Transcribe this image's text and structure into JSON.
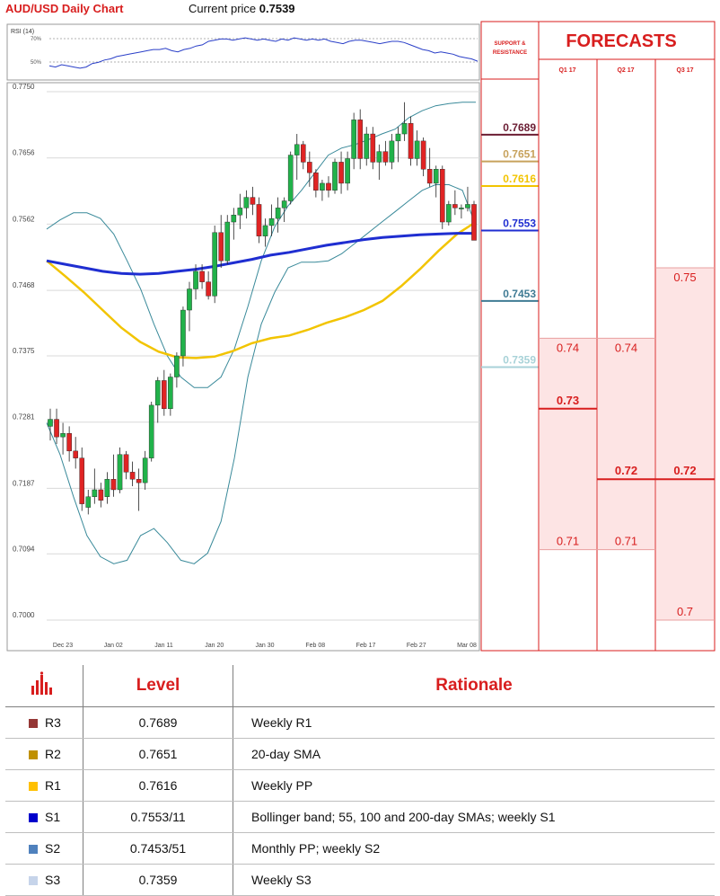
{
  "header": {
    "title": "AUD/USD Daily Chart",
    "price_label": "Current price",
    "price_value": "0.7539"
  },
  "chart_data": [
    {
      "type": "line",
      "title": "RSI (14)",
      "y_tick_labels": [
        "70%",
        "50%"
      ],
      "ylim": [
        40,
        80
      ],
      "rsi_values": [
        49,
        48,
        50,
        49,
        48,
        47,
        48,
        51,
        52,
        54,
        55,
        57,
        58,
        59,
        60,
        61,
        62,
        63,
        63,
        64,
        62,
        61,
        63,
        64,
        66,
        67,
        70,
        71,
        72,
        72,
        71,
        72,
        73,
        72,
        71,
        72,
        71,
        70,
        72,
        71,
        73,
        72,
        71,
        72,
        71,
        72,
        70,
        69,
        68,
        70,
        71,
        71,
        70,
        69,
        68,
        69,
        70,
        70,
        69,
        67,
        65,
        63,
        62,
        60,
        61,
        60,
        59,
        57,
        56,
        55,
        53
      ],
      "color": "#2a3fc8"
    },
    {
      "type": "candlestick",
      "ylim": [
        0.7,
        0.775
      ],
      "y_ticks": [
        "0.7750",
        "0.7656",
        "0.7562",
        "0.7468",
        "0.7375",
        "0.7281",
        "0.7187",
        "0.7094",
        "0.7000"
      ],
      "x_tick_labels": [
        "Dec 23",
        "Jan 02",
        "Jan 11",
        "Jan 20",
        "Jan 30",
        "Feb 08",
        "Feb 17",
        "Feb 27",
        "Mar 08"
      ],
      "candles": [
        {
          "o": 0.7275,
          "h": 0.73,
          "l": 0.7255,
          "c": 0.7285
        },
        {
          "o": 0.7285,
          "h": 0.73,
          "l": 0.725,
          "c": 0.726
        },
        {
          "o": 0.726,
          "h": 0.728,
          "l": 0.7235,
          "c": 0.7265
        },
        {
          "o": 0.7265,
          "h": 0.7275,
          "l": 0.7225,
          "c": 0.724
        },
        {
          "o": 0.724,
          "h": 0.726,
          "l": 0.7215,
          "c": 0.723
        },
        {
          "o": 0.723,
          "h": 0.7245,
          "l": 0.7155,
          "c": 0.7165
        },
        {
          "o": 0.716,
          "h": 0.7185,
          "l": 0.715,
          "c": 0.7175
        },
        {
          "o": 0.7175,
          "h": 0.7215,
          "l": 0.7165,
          "c": 0.7185
        },
        {
          "o": 0.7185,
          "h": 0.7195,
          "l": 0.716,
          "c": 0.717
        },
        {
          "o": 0.7175,
          "h": 0.721,
          "l": 0.7165,
          "c": 0.72
        },
        {
          "o": 0.72,
          "h": 0.7235,
          "l": 0.7175,
          "c": 0.7185
        },
        {
          "o": 0.7185,
          "h": 0.7245,
          "l": 0.718,
          "c": 0.7235
        },
        {
          "o": 0.7235,
          "h": 0.724,
          "l": 0.72,
          "c": 0.721
        },
        {
          "o": 0.721,
          "h": 0.7225,
          "l": 0.719,
          "c": 0.72
        },
        {
          "o": 0.72,
          "h": 0.7215,
          "l": 0.7155,
          "c": 0.7195
        },
        {
          "o": 0.7195,
          "h": 0.724,
          "l": 0.7185,
          "c": 0.723
        },
        {
          "o": 0.723,
          "h": 0.731,
          "l": 0.7225,
          "c": 0.7305
        },
        {
          "o": 0.7305,
          "h": 0.7345,
          "l": 0.728,
          "c": 0.734
        },
        {
          "o": 0.734,
          "h": 0.7355,
          "l": 0.729,
          "c": 0.73
        },
        {
          "o": 0.73,
          "h": 0.735,
          "l": 0.729,
          "c": 0.7345
        },
        {
          "o": 0.7345,
          "h": 0.738,
          "l": 0.733,
          "c": 0.7375
        },
        {
          "o": 0.7375,
          "h": 0.7445,
          "l": 0.736,
          "c": 0.744
        },
        {
          "o": 0.744,
          "h": 0.748,
          "l": 0.741,
          "c": 0.747
        },
        {
          "o": 0.747,
          "h": 0.7505,
          "l": 0.7455,
          "c": 0.7495
        },
        {
          "o": 0.7495,
          "h": 0.7505,
          "l": 0.747,
          "c": 0.748
        },
        {
          "o": 0.748,
          "h": 0.7495,
          "l": 0.7455,
          "c": 0.746
        },
        {
          "o": 0.746,
          "h": 0.756,
          "l": 0.745,
          "c": 0.755
        },
        {
          "o": 0.755,
          "h": 0.7575,
          "l": 0.75,
          "c": 0.751
        },
        {
          "o": 0.751,
          "h": 0.7575,
          "l": 0.7505,
          "c": 0.7565
        },
        {
          "o": 0.7565,
          "h": 0.7585,
          "l": 0.754,
          "c": 0.7575
        },
        {
          "o": 0.7575,
          "h": 0.7605,
          "l": 0.7555,
          "c": 0.7585
        },
        {
          "o": 0.7585,
          "h": 0.761,
          "l": 0.757,
          "c": 0.76
        },
        {
          "o": 0.76,
          "h": 0.7615,
          "l": 0.7575,
          "c": 0.759
        },
        {
          "o": 0.759,
          "h": 0.76,
          "l": 0.7535,
          "c": 0.7545
        },
        {
          "o": 0.7545,
          "h": 0.757,
          "l": 0.753,
          "c": 0.756
        },
        {
          "o": 0.756,
          "h": 0.759,
          "l": 0.7545,
          "c": 0.757
        },
        {
          "o": 0.757,
          "h": 0.76,
          "l": 0.755,
          "c": 0.7585
        },
        {
          "o": 0.7585,
          "h": 0.76,
          "l": 0.7565,
          "c": 0.7595
        },
        {
          "o": 0.7595,
          "h": 0.7665,
          "l": 0.759,
          "c": 0.766
        },
        {
          "o": 0.766,
          "h": 0.769,
          "l": 0.7625,
          "c": 0.7675
        },
        {
          "o": 0.7675,
          "h": 0.768,
          "l": 0.764,
          "c": 0.765
        },
        {
          "o": 0.765,
          "h": 0.7665,
          "l": 0.7615,
          "c": 0.7635
        },
        {
          "o": 0.7635,
          "h": 0.764,
          "l": 0.76,
          "c": 0.761
        },
        {
          "o": 0.761,
          "h": 0.7625,
          "l": 0.7595,
          "c": 0.762
        },
        {
          "o": 0.762,
          "h": 0.763,
          "l": 0.76,
          "c": 0.761
        },
        {
          "o": 0.761,
          "h": 0.7655,
          "l": 0.7605,
          "c": 0.765
        },
        {
          "o": 0.765,
          "h": 0.7665,
          "l": 0.7605,
          "c": 0.762
        },
        {
          "o": 0.762,
          "h": 0.7665,
          "l": 0.761,
          "c": 0.7655
        },
        {
          "o": 0.7655,
          "h": 0.772,
          "l": 0.764,
          "c": 0.771
        },
        {
          "o": 0.771,
          "h": 0.7725,
          "l": 0.764,
          "c": 0.7655
        },
        {
          "o": 0.7655,
          "h": 0.77,
          "l": 0.7645,
          "c": 0.769
        },
        {
          "o": 0.769,
          "h": 0.77,
          "l": 0.764,
          "c": 0.765
        },
        {
          "o": 0.765,
          "h": 0.7675,
          "l": 0.7625,
          "c": 0.7665
        },
        {
          "o": 0.7665,
          "h": 0.768,
          "l": 0.7645,
          "c": 0.765
        },
        {
          "o": 0.765,
          "h": 0.769,
          "l": 0.764,
          "c": 0.768
        },
        {
          "o": 0.768,
          "h": 0.77,
          "l": 0.765,
          "c": 0.769
        },
        {
          "o": 0.769,
          "h": 0.7735,
          "l": 0.768,
          "c": 0.7705
        },
        {
          "o": 0.7705,
          "h": 0.7715,
          "l": 0.7645,
          "c": 0.7655
        },
        {
          "o": 0.7655,
          "h": 0.7695,
          "l": 0.7645,
          "c": 0.768
        },
        {
          "o": 0.768,
          "h": 0.7685,
          "l": 0.763,
          "c": 0.764
        },
        {
          "o": 0.764,
          "h": 0.767,
          "l": 0.7615,
          "c": 0.762
        },
        {
          "o": 0.762,
          "h": 0.7645,
          "l": 0.76,
          "c": 0.764
        },
        {
          "o": 0.764,
          "h": 0.7645,
          "l": 0.7555,
          "c": 0.7565
        },
        {
          "o": 0.7565,
          "h": 0.7595,
          "l": 0.756,
          "c": 0.759
        },
        {
          "o": 0.759,
          "h": 0.761,
          "l": 0.7575,
          "c": 0.7585
        },
        {
          "o": 0.7585,
          "h": 0.759,
          "l": 0.757,
          "c": 0.7585
        },
        {
          "o": 0.7585,
          "h": 0.7615,
          "l": 0.758,
          "c": 0.759
        },
        {
          "o": 0.759,
          "h": 0.7595,
          "l": 0.754,
          "c": 0.7539
        }
      ],
      "bollinger_upper": [
        0.7555,
        0.7568,
        0.7578,
        0.7578,
        0.757,
        0.7548,
        0.751,
        0.747,
        0.742,
        0.7375,
        0.7345,
        0.733,
        0.733,
        0.7345,
        0.7385,
        0.7445,
        0.751,
        0.7558,
        0.7588,
        0.761,
        0.7635,
        0.766,
        0.767,
        0.7675,
        0.7682,
        0.769,
        0.7697,
        0.7713,
        0.7723,
        0.773,
        0.7733,
        0.7735,
        0.7735
      ],
      "bollinger_lower": [
        0.728,
        0.7235,
        0.7175,
        0.712,
        0.709,
        0.708,
        0.7085,
        0.712,
        0.713,
        0.711,
        0.7085,
        0.708,
        0.7095,
        0.714,
        0.723,
        0.7345,
        0.742,
        0.7465,
        0.75,
        0.7508,
        0.7508,
        0.751,
        0.752,
        0.7535,
        0.755,
        0.7565,
        0.758,
        0.7595,
        0.761,
        0.7618,
        0.7618,
        0.761,
        0.756
      ],
      "sma_200": [
        0.751,
        0.7505,
        0.75,
        0.7495,
        0.7492,
        0.7491,
        0.7492,
        0.7495,
        0.7498,
        0.7502,
        0.7507,
        0.7512,
        0.7518,
        0.7522,
        0.7527,
        0.7532,
        0.7536,
        0.754,
        0.7543,
        0.7545,
        0.7547,
        0.7548,
        0.7549,
        0.7549
      ],
      "sma_100": [
        0.751,
        0.7488,
        0.7465,
        0.744,
        0.7415,
        0.7395,
        0.7381,
        0.7373,
        0.7372,
        0.7374,
        0.7382,
        0.7393,
        0.74,
        0.7404,
        0.7412,
        0.7422,
        0.743,
        0.744,
        0.7453,
        0.7474,
        0.7498,
        0.7524,
        0.7548,
        0.7565
      ],
      "sma_20": [
        0.747,
        0.744,
        0.741,
        0.7375,
        0.733,
        0.7305,
        0.73,
        0.733,
        0.739,
        0.7455,
        0.751,
        0.755,
        0.7575,
        0.7595,
        0.761,
        0.762,
        0.7628,
        0.7636,
        0.7643,
        0.7648,
        0.765,
        0.7651
      ],
      "support_resistance_title": "SUPPORT & RESISTANCE",
      "levels": [
        {
          "label": "0.7689",
          "value": 0.7689,
          "color": "#6b1d33"
        },
        {
          "label": "0.7651",
          "value": 0.7651,
          "color": "#c7a25c"
        },
        {
          "label": "0.7616",
          "value": 0.7616,
          "color": "#f2c400"
        },
        {
          "label": "0.7553",
          "value": 0.7553,
          "color": "#1f2ed1"
        },
        {
          "label": "0.7453",
          "value": 0.7453,
          "color": "#3f7b94"
        },
        {
          "label": "0.7359",
          "value": 0.7359,
          "color": "#a8d2d8"
        }
      ]
    }
  ],
  "forecasts": {
    "title": "FORECASTS",
    "quarters": [
      {
        "label": "Q1 17",
        "high": 0.74,
        "mid": 0.73,
        "low": 0.71,
        "high_text": "0.74",
        "mid_text": "0.73",
        "low_text": "0.71"
      },
      {
        "label": "Q2 17",
        "high": 0.74,
        "mid": 0.72,
        "low": 0.71,
        "high_text": "0.74",
        "mid_text": "0.72",
        "low_text": "0.71"
      },
      {
        "label": "Q3 17",
        "high": 0.75,
        "mid": 0.72,
        "low": 0.7,
        "high_text": "0.75",
        "mid_text": "0.72",
        "low_text": "0.7"
      }
    ]
  },
  "levels_table": {
    "headers": {
      "level": "Level",
      "rationale": "Rationale"
    },
    "rows": [
      {
        "name": "R3",
        "value": "0.7689",
        "rationale": "Weekly R1",
        "color": "#953735"
      },
      {
        "name": "R2",
        "value": "0.7651",
        "rationale": "20-day SMA",
        "color": "#c09100"
      },
      {
        "name": "R1",
        "value": "0.7616",
        "rationale": "Weekly PP",
        "color": "#ffc000"
      },
      {
        "name": "S1",
        "value": "0.7553/11",
        "rationale": "Bollinger band; 55, 100 and 200-day SMAs; weekly S1",
        "color": "#0000cc"
      },
      {
        "name": "S2",
        "value": "0.7453/51",
        "rationale": "Monthly PP; weekly S2",
        "color": "#4f81bd"
      },
      {
        "name": "S3",
        "value": "0.7359",
        "rationale": "Weekly S3",
        "color": "#c6d4ea"
      }
    ]
  },
  "colors": {
    "up": "#21b24a",
    "down": "#e02424",
    "accent": "#d81e1e",
    "forecast_fill": "#fde4e4"
  }
}
